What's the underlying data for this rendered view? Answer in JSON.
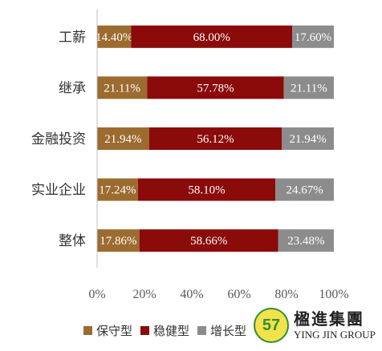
{
  "chart_data": {
    "type": "bar",
    "orientation": "horizontal",
    "stacked": true,
    "categories": [
      "工薪",
      "继承",
      "金融投资",
      "实业企业",
      "整体"
    ],
    "series": [
      {
        "name": "保守型",
        "color": "#9c6b30",
        "values": [
          14.4,
          21.11,
          21.94,
          17.24,
          17.86
        ],
        "labels": [
          "14.40%",
          "21.11%",
          "21.94%",
          "17.24%",
          "17.86%"
        ]
      },
      {
        "name": "稳健型",
        "color": "#8b0a0a",
        "values": [
          68.0,
          57.78,
          56.12,
          58.1,
          58.66
        ],
        "labels": [
          "68.00%",
          "57.78%",
          "56.12%",
          "58.10%",
          "58.66%"
        ]
      },
      {
        "name": "增长型",
        "color": "#8c8c8c",
        "values": [
          17.6,
          21.11,
          21.94,
          24.67,
          23.48
        ],
        "labels": [
          "17.60%",
          "21.11%",
          "21.94%",
          "24.67%",
          "23.48%"
        ]
      }
    ],
    "xlim": [
      0,
      100
    ],
    "xticks": [
      "0%",
      "20%",
      "40%",
      "60%",
      "80%",
      "100%"
    ],
    "grid": false,
    "legend_position": "bottom"
  },
  "logo": {
    "mark": "57",
    "name_cn": "楹進集團",
    "name_en": "YING JIN GROUP"
  }
}
